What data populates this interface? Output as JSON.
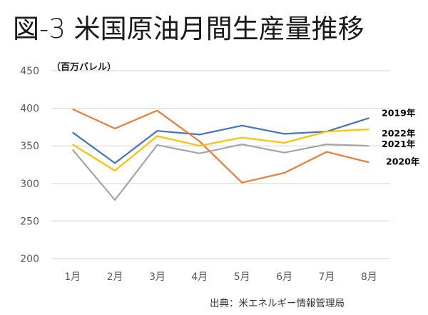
{
  "title": "図-3 米国原油月間生産量推移",
  "source": "出典：米エネルギー情報管理局",
  "chart_data": {
    "type": "line",
    "title": "図-3 米国原油月間生産量推移",
    "unit_label": "（百万バレル）",
    "xlabel": "",
    "ylabel": "",
    "categories": [
      "1月",
      "2月",
      "3月",
      "4月",
      "5月",
      "6月",
      "7月",
      "8月"
    ],
    "ylim": [
      200,
      450
    ],
    "yticks": [
      450,
      400,
      350,
      300,
      250,
      200
    ],
    "grid": true,
    "legend": "inline-right",
    "series": [
      {
        "name": "2019年",
        "color": "#4472C4",
        "values": [
          368,
          327,
          370,
          365,
          377,
          366,
          369,
          387
        ]
      },
      {
        "name": "2020年",
        "color": "#ED7D31",
        "values": [
          399,
          373,
          397,
          356,
          301,
          314,
          342,
          328
        ]
      },
      {
        "name": "2021年",
        "color": "#A5A5A5",
        "values": [
          345,
          278,
          351,
          340,
          352,
          341,
          352,
          350
        ]
      },
      {
        "name": "2022年",
        "color": "#FFC000",
        "values": [
          352,
          317,
          363,
          350,
          361,
          354,
          369,
          372
        ]
      }
    ]
  }
}
